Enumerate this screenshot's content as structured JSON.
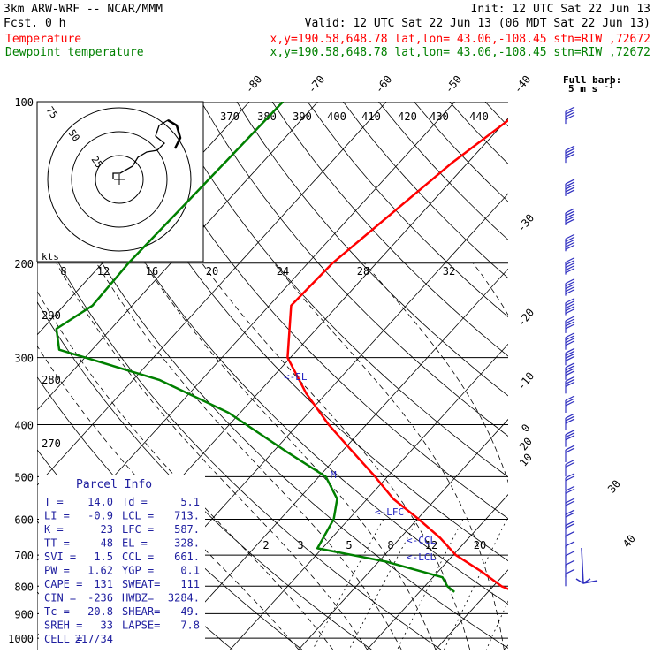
{
  "header": {
    "model": "3km ARW-WRF -- NCAR/MMM",
    "init": "Init: 12 UTC Sat 22 Jun 13",
    "fcst": "Fcst.    0 h",
    "valid": "Valid: 12 UTC Sat 22 Jun 13 (06 MDT Sat 22 Jun 13)",
    "temp_label": "Temperature",
    "dew_label": "Dewpoint temperature",
    "temp_loc": "x,y=190.58,648.78   lat,lon= 43.06,-108.45  stn=RIW ,72672",
    "dew_loc": "x,y=190.58,648.78   lat,lon= 43.06,-108.45  stn=RIW ,72672"
  },
  "colors": {
    "temperature": "#ff0000",
    "dewpoint": "#008000",
    "parcel_text": "#2020a0",
    "wind": "#3030c0",
    "background": "#ffffff"
  },
  "barb_legend": {
    "title": "Full barb:",
    "value": "5 m s",
    "exponent": "-1"
  },
  "hodograph": {
    "kts_label": "kts",
    "ring_labels": [
      "75",
      "50",
      "25"
    ],
    "speed_ticks": [
      "8",
      "12",
      "16",
      "20",
      "24",
      "28",
      "32"
    ],
    "theta_labels": [
      "370",
      "380",
      "390",
      "400",
      "410",
      "420",
      "430",
      "440"
    ],
    "theta_left_labels": [
      "290",
      "280",
      "270"
    ]
  },
  "mixing_ratio_labels": [
    "2",
    "3",
    "5",
    "8",
    "12",
    "20"
  ],
  "annotations": {
    "el": "<-EL",
    "m": "M",
    "lfc": "<-LFC",
    "ccl": "<-CCL",
    "lcl": "<-LCL"
  },
  "parcel_info": {
    "title": "Parcel Info",
    "rows": [
      [
        "T  =",
        "14.0",
        "Td  =",
        "5.1"
      ],
      [
        "LI =",
        "-0.9",
        "LCL =",
        "713."
      ],
      [
        "K  =",
        "23",
        "LFC =",
        "587."
      ],
      [
        "TT =",
        "48",
        "EL  =",
        "328."
      ],
      [
        "SVI =",
        "1.5",
        "CCL =",
        "661."
      ],
      [
        "PW =",
        "1.62",
        "YGP =",
        "0.1"
      ],
      [
        "CAPE =",
        "131",
        "SWEAT=",
        "111"
      ],
      [
        "CIN =",
        "-236",
        "HWBZ=",
        "3284."
      ],
      [
        "Tc =",
        "20.8",
        "SHEAR=",
        "49."
      ],
      [
        "SREH =",
        "33",
        "LAPSE=",
        "7.8"
      ],
      [
        "CELL =",
        "217/34",
        "",
        ""
      ]
    ]
  },
  "chart_data": {
    "type": "line",
    "title": "",
    "ylabel": "",
    "y_scale": "log pressure (hPa)",
    "pressure_ticks": [
      100,
      200,
      300,
      400,
      500,
      600,
      700,
      800,
      900,
      1000
    ],
    "skewed_temperature_labels": [
      -80,
      -70,
      -60,
      -50,
      -40,
      -30,
      -20,
      -10,
      0,
      10,
      20,
      30,
      40
    ],
    "series": [
      {
        "name": "Temperature",
        "points": [
          [
            100,
            -48.6
          ],
          [
            130,
            -52.3
          ],
          [
            200,
            -56.4
          ],
          [
            240,
            -56.8
          ],
          [
            300,
            -50.4
          ],
          [
            350,
            -42.9
          ],
          [
            400,
            -35.5
          ],
          [
            450,
            -28.3
          ],
          [
            500,
            -21.8
          ],
          [
            550,
            -16.2
          ],
          [
            600,
            -9.8
          ],
          [
            650,
            -4.2
          ],
          [
            700,
            0.4
          ],
          [
            750,
            6.2
          ],
          [
            800,
            11.2
          ],
          [
            820,
            14.0
          ]
        ]
      },
      {
        "name": "Dewpoint temperature",
        "points": [
          [
            100,
            -85.1
          ],
          [
            150,
            -85.7
          ],
          [
            200,
            -86.2
          ],
          [
            240,
            -85.8
          ],
          [
            265,
            -88.0
          ],
          [
            290,
            -84.8
          ],
          [
            330,
            -66.2
          ],
          [
            380,
            -51.7
          ],
          [
            450,
            -37.9
          ],
          [
            500,
            -29.0
          ],
          [
            550,
            -24.4
          ],
          [
            600,
            -22.2
          ],
          [
            680,
            -20.7
          ],
          [
            720,
            -8.9
          ],
          [
            770,
            1.4
          ],
          [
            800,
            3.3
          ],
          [
            820,
            5.1
          ]
        ]
      }
    ],
    "wind_barbs": [
      {
        "p": 110,
        "kts": 40
      },
      {
        "p": 130,
        "kts": 40
      },
      {
        "p": 150,
        "kts": 45
      },
      {
        "p": 170,
        "kts": 45
      },
      {
        "p": 190,
        "kts": 45
      },
      {
        "p": 210,
        "kts": 50
      },
      {
        "p": 230,
        "kts": 45
      },
      {
        "p": 250,
        "kts": 45
      },
      {
        "p": 270,
        "kts": 40
      },
      {
        "p": 290,
        "kts": 40
      },
      {
        "p": 310,
        "kts": 35
      },
      {
        "p": 330,
        "kts": 35
      },
      {
        "p": 350,
        "kts": 30
      },
      {
        "p": 380,
        "kts": 30
      },
      {
        "p": 410,
        "kts": 25
      },
      {
        "p": 440,
        "kts": 25
      },
      {
        "p": 470,
        "kts": 20
      },
      {
        "p": 500,
        "kts": 20
      },
      {
        "p": 530,
        "kts": 20
      },
      {
        "p": 560,
        "kts": 20
      },
      {
        "p": 590,
        "kts": 15
      },
      {
        "p": 620,
        "kts": 15
      },
      {
        "p": 650,
        "kts": 15
      },
      {
        "p": 680,
        "kts": 10
      },
      {
        "p": 710,
        "kts": 10
      },
      {
        "p": 740,
        "kts": 10
      },
      {
        "p": 770,
        "kts": 5
      },
      {
        "p": 800,
        "kts": 5
      }
    ]
  }
}
